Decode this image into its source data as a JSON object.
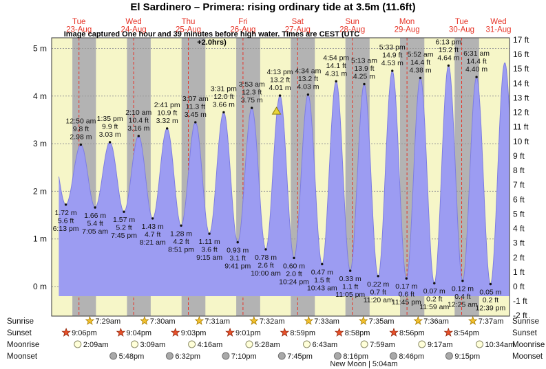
{
  "chart_data": {
    "type": "area",
    "title": "El Sardinero – Primera: rising  ordinary tide at 3.5m (11.6ft)",
    "subtitle": "Image captured One hour and 39 minutes before high water. Times are CEST (UTC +2.0hrs)",
    "x_epoch": "23-Aug 12:00",
    "x_range_hours": [
      0,
      201
    ],
    "ylim_m": [
      -0.66,
      5.19
    ],
    "y_left": [
      "5 m",
      "4 m",
      "3 m",
      "2 m",
      "1 m",
      "0 m"
    ],
    "y_right": [
      "17 ft",
      "16 ft",
      "15 ft",
      "14 ft",
      "13 ft",
      "12 ft",
      "11 ft",
      "10 ft",
      "9 ft",
      "8 ft",
      "7 ft",
      "6 ft",
      "5 ft",
      "4 ft",
      "3 ft",
      "2 ft",
      "1 ft",
      "0 ft",
      "-1 ft",
      "-2 ft"
    ],
    "days": [
      {
        "dow": "Tue",
        "date": "23-Aug",
        "t": 12
      },
      {
        "dow": "Wed",
        "date": "24-Aug",
        "t": 36
      },
      {
        "dow": "Thu",
        "date": "25-Aug",
        "t": 60
      },
      {
        "dow": "Fri",
        "date": "26-Aug",
        "t": 84
      },
      {
        "dow": "Sat",
        "date": "27-Aug",
        "t": 108
      },
      {
        "dow": "Sun",
        "date": "28-Aug",
        "t": 132
      },
      {
        "dow": "Mon",
        "date": "29-Aug",
        "t": 156
      },
      {
        "dow": "Tue",
        "date": "30-Aug",
        "t": 180
      },
      {
        "dow": "Wed",
        "date": "31-Aug",
        "t": 204
      }
    ],
    "extremes": [
      {
        "kind": "high",
        "t": 0.08,
        "h": 2.9,
        "virtual": true
      },
      {
        "kind": "low",
        "t": 6.22,
        "h": 1.72,
        "m": "1.72 m",
        "ft": "5.6 ft",
        "time": "6:13 pm"
      },
      {
        "kind": "high",
        "t": 12.83,
        "h": 2.98,
        "m": "2.98 m",
        "ft": "9.8 ft",
        "time": "12:50 am"
      },
      {
        "kind": "low",
        "t": 19.08,
        "h": 1.66,
        "m": "1.66 m",
        "ft": "5.4 ft",
        "time": "7:05 am"
      },
      {
        "kind": "high",
        "t": 25.58,
        "h": 3.03,
        "m": "3.03 m",
        "ft": "9.9 ft",
        "time": "1:35 pm"
      },
      {
        "kind": "low",
        "t": 31.75,
        "h": 1.57,
        "m": "1.57 m",
        "ft": "5.2 ft",
        "time": "7:45 pm"
      },
      {
        "kind": "high",
        "t": 38.17,
        "h": 3.16,
        "m": "3.16 m",
        "ft": "10.4 ft",
        "time": "2:10 am"
      },
      {
        "kind": "low",
        "t": 44.35,
        "h": 1.43,
        "m": "1.43 m",
        "ft": "4.7 ft",
        "time": "8:21 am"
      },
      {
        "kind": "high",
        "t": 50.68,
        "h": 3.32,
        "m": "3.32 m",
        "ft": "10.9 ft",
        "time": "2:41 pm"
      },
      {
        "kind": "low",
        "t": 56.85,
        "h": 1.28,
        "m": "1.28 m",
        "ft": "4.2 ft",
        "time": "8:51 pm"
      },
      {
        "kind": "high",
        "t": 63.12,
        "h": 3.45,
        "m": "3.45 m",
        "ft": "11.3 ft",
        "time": "3:07 am"
      },
      {
        "kind": "low",
        "t": 69.25,
        "h": 1.11,
        "m": "1.11 m",
        "ft": "3.6 ft",
        "time": "9:15 am"
      },
      {
        "kind": "high",
        "t": 75.52,
        "h": 3.66,
        "m": "3.66 m",
        "ft": "12.0 ft",
        "time": "3:31 pm"
      },
      {
        "kind": "low",
        "t": 81.68,
        "h": 0.93,
        "m": "0.93 m",
        "ft": "3.1 ft",
        "time": "9:41 pm"
      },
      {
        "kind": "high",
        "t": 87.88,
        "h": 3.75,
        "m": "3.75 m",
        "ft": "12.3 ft",
        "time": "3:53 am"
      },
      {
        "kind": "low",
        "t": 94.0,
        "h": 0.78,
        "m": "0.78 m",
        "ft": "2.6 ft",
        "time": "10:00 am"
      },
      {
        "kind": "high",
        "t": 100.22,
        "h": 4.01,
        "m": "4.01 m",
        "ft": "13.2 ft",
        "time": "4:13 pm",
        "marker": true
      },
      {
        "kind": "low",
        "t": 106.4,
        "h": 0.6,
        "m": "0.60 m",
        "ft": "2.0 ft",
        "time": "10:24 pm"
      },
      {
        "kind": "high",
        "t": 112.57,
        "h": 4.03,
        "m": "4.03 m",
        "ft": "13.2 ft",
        "time": "4:34 am"
      },
      {
        "kind": "low",
        "t": 118.72,
        "h": 0.47,
        "m": "0.47 m",
        "ft": "1.5 ft",
        "time": "10:43 am"
      },
      {
        "kind": "high",
        "t": 124.9,
        "h": 4.31,
        "m": "4.31 m",
        "ft": "14.1 ft",
        "time": "4:54 pm"
      },
      {
        "kind": "low",
        "t": 131.08,
        "h": 0.33,
        "m": "0.33 m",
        "ft": "1.1 ft",
        "time": "11:05 pm"
      },
      {
        "kind": "high",
        "t": 137.22,
        "h": 4.25,
        "m": "4.25 m",
        "ft": "13.9 ft",
        "time": "5:13 am"
      },
      {
        "kind": "low",
        "t": 143.33,
        "h": 0.22,
        "m": "0.22 m",
        "ft": "0.7 ft",
        "time": "11:20 am"
      },
      {
        "kind": "high",
        "t": 149.55,
        "h": 4.53,
        "m": "4.53 m",
        "ft": "14.9 ft",
        "time": "5:33 pm"
      },
      {
        "kind": "low",
        "t": 155.75,
        "h": 0.17,
        "m": "0.17 m",
        "ft": "0.6 ft",
        "time": "11:45 pm"
      },
      {
        "kind": "high",
        "t": 161.87,
        "h": 4.38,
        "m": "4.38 m",
        "ft": "14.4 ft",
        "time": "5:52 am"
      },
      {
        "kind": "low",
        "t": 167.98,
        "h": 0.07,
        "m": "0.07 m",
        "ft": "0.2 ft",
        "time": "11:59 am"
      },
      {
        "kind": "high",
        "t": 174.22,
        "h": 4.64,
        "m": "4.64 m",
        "ft": "15.2 ft",
        "time": "6:13 pm"
      },
      {
        "kind": "low",
        "t": 180.42,
        "h": 0.12,
        "m": "0.12 m",
        "ft": "0.4 ft",
        "time": "12:25 am"
      },
      {
        "kind": "high",
        "t": 186.52,
        "h": 4.4,
        "m": "4.40 m",
        "ft": "14.4 ft",
        "time": "6:31 am"
      },
      {
        "kind": "low",
        "t": 192.65,
        "h": 0.05,
        "m": "0.05 m",
        "ft": "0.2 ft",
        "time": "12:39 pm"
      },
      {
        "kind": "high",
        "t": 198.92,
        "h": 4.7,
        "virtual": true
      },
      {
        "kind": "low",
        "t": 205.3,
        "h": 0.1,
        "virtual": true
      }
    ],
    "sun_moon": {
      "rows": [
        {
          "id": "sunrise",
          "label": "Sunrise",
          "icon": "sunrise-star-icon",
          "entries": [
            {
              "time": "7:29am",
              "t": 19.48
            },
            {
              "time": "7:30am",
              "t": 43.5
            },
            {
              "time": "7:31am",
              "t": 67.52
            },
            {
              "time": "7:32am",
              "t": 91.53
            },
            {
              "time": "7:33am",
              "t": 115.55
            },
            {
              "time": "7:35am",
              "t": 139.58
            },
            {
              "time": "7:36am",
              "t": 163.6
            },
            {
              "time": "7:37am",
              "t": 187.62
            }
          ]
        },
        {
          "id": "sunset",
          "label": "Sunset",
          "icon": "sunset-star-icon",
          "entries": [
            {
              "time": "9:06pm",
              "t": 9.1
            },
            {
              "time": "9:04pm",
              "t": 33.07
            },
            {
              "time": "9:03pm",
              "t": 57.05
            },
            {
              "time": "9:01pm",
              "t": 81.02
            },
            {
              "time": "8:59pm",
              "t": 104.98
            },
            {
              "time": "8:58pm",
              "t": 128.97
            },
            {
              "time": "8:56pm",
              "t": 152.93
            },
            {
              "time": "8:54pm",
              "t": 176.9
            }
          ]
        },
        {
          "id": "moonrise",
          "label": "Moonrise",
          "icon": "moonrise-circle-icon",
          "entries": [
            {
              "time": "2:09am",
              "t": 14.15
            },
            {
              "time": "3:09am",
              "t": 39.15
            },
            {
              "time": "4:16am",
              "t": 64.27
            },
            {
              "time": "5:28am",
              "t": 89.47
            },
            {
              "time": "6:43am",
              "t": 114.72
            },
            {
              "time": "7:59am",
              "t": 139.98
            },
            {
              "time": "9:17am",
              "t": 165.28
            },
            {
              "time": "10:34am",
              "t": 190.57
            }
          ]
        },
        {
          "id": "moonset",
          "label": "Moonset",
          "icon": "moonset-circle-icon",
          "entries": [
            {
              "time": "5:48pm",
              "t": 29.8
            },
            {
              "time": "6:32pm",
              "t": 54.53
            },
            {
              "time": "7:10pm",
              "t": 79.17
            },
            {
              "time": "7:45pm",
              "t": 103.75
            },
            {
              "time": "8:16pm",
              "t": 128.27
            },
            {
              "time": "8:46pm",
              "t": 152.77
            },
            {
              "time": "9:15pm",
              "t": 177.25
            }
          ]
        }
      ],
      "new_moon": {
        "label": "New Moon | 5:04am",
        "t": 137.07
      }
    },
    "colors": {
      "plot_bg": "#f6f6c8",
      "night_band": "#b3b3b3",
      "tide_fill": "#9c9cf2",
      "tide_edge": "#7d7de2",
      "day_label": "#e63327",
      "grid": "#999999",
      "text": "#111111",
      "border": "#333333",
      "sunrise_fill": "#f2c12e",
      "sunrise_stroke": "#a77b00",
      "sunset_fill": "#e8502a",
      "sunset_stroke": "#90260a",
      "moonrise_fill": "#ffffd9",
      "moonrise_stroke": "#8a8a66",
      "moonset_fill": "#a9a9a9",
      "moonset_stroke": "#6f6f6f",
      "marker_fill": "#e8d43a",
      "marker_stroke": "#8d7d00"
    }
  }
}
